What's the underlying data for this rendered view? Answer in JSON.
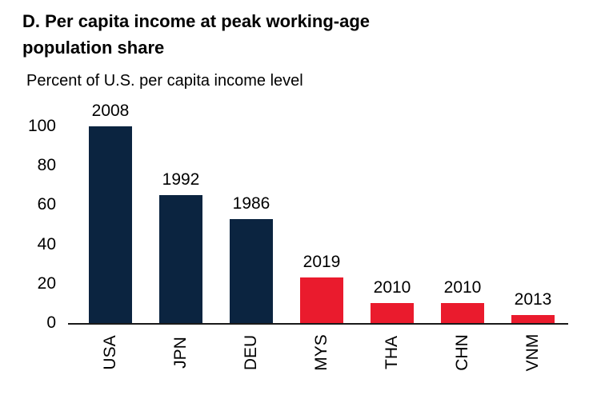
{
  "title": "D. Per capita income at peak working-age population share",
  "subtitle": "Percent of U.S. per capita income level",
  "colors": {
    "navy": "#0b2440",
    "red": "#ea1b2d",
    "axis": "#1a1a1a",
    "background": "#ffffff",
    "text": "#000000"
  },
  "chart_data": {
    "type": "bar",
    "title": "D. Per capita income at peak working-age population share",
    "subtitle": "Percent of U.S. per capita income level",
    "categories": [
      "USA",
      "JPN",
      "DEU",
      "MYS",
      "THA",
      "CHN",
      "VNM"
    ],
    "values": [
      100,
      65,
      53,
      23,
      10,
      10,
      4
    ],
    "bar_labels": [
      "2008",
      "1992",
      "1986",
      "2019",
      "2010",
      "2010",
      "2013"
    ],
    "bar_colors": [
      "#0b2440",
      "#0b2440",
      "#0b2440",
      "#ea1b2d",
      "#ea1b2d",
      "#ea1b2d",
      "#ea1b2d"
    ],
    "xlabel": "",
    "ylabel": "Percent of U.S. per capita income level",
    "ylim": [
      0,
      100
    ],
    "yticks": [
      0,
      20,
      40,
      60,
      80,
      100
    ],
    "grid": false,
    "legend": "none"
  }
}
